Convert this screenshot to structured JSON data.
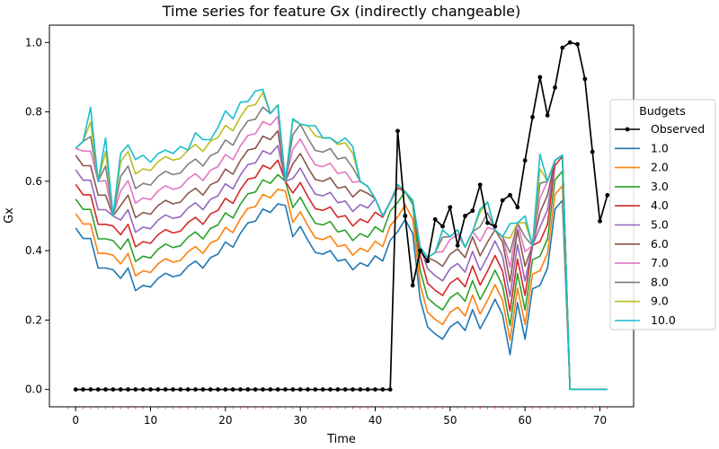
{
  "chart_data": {
    "type": "line",
    "title": "Time series for feature Gx (indirectly changeable)",
    "xlabel": "Time",
    "ylabel": "Gx",
    "xlim": [
      -3.5,
      74.5
    ],
    "ylim": [
      -0.05,
      1.05
    ],
    "xticks": [
      0,
      10,
      20,
      30,
      40,
      50,
      60,
      70
    ],
    "xtick_labels": [
      "0",
      "10",
      "20",
      "30",
      "40",
      "50",
      "60",
      "70"
    ],
    "yticks": [
      0.0,
      0.2,
      0.4,
      0.6,
      0.8,
      1.0
    ],
    "ytick_labels": [
      "0.0",
      "0.2",
      "0.4",
      "0.6",
      "0.8",
      "1.0"
    ],
    "legend": {
      "title": "Budgets",
      "placement": "center-right (outside plot)"
    },
    "grid": false,
    "observed": {
      "name": "Observed",
      "color": "#000000",
      "x": [
        0,
        1,
        2,
        3,
        4,
        5,
        6,
        7,
        8,
        9,
        10,
        11,
        12,
        13,
        14,
        15,
        16,
        17,
        18,
        19,
        20,
        21,
        22,
        23,
        24,
        25,
        26,
        27,
        28,
        29,
        30,
        31,
        32,
        33,
        34,
        35,
        36,
        37,
        38,
        39,
        40,
        41,
        42,
        43,
        44,
        45,
        46,
        47,
        48,
        49,
        50,
        51,
        52,
        53,
        54,
        55,
        56,
        57,
        58,
        59,
        60,
        61,
        62,
        63,
        64,
        65,
        66,
        67,
        68,
        69,
        70,
        71
      ],
      "values": [
        0,
        0,
        0,
        0,
        0,
        0,
        0,
        0,
        0,
        0,
        0,
        0,
        0,
        0,
        0,
        0,
        0,
        0,
        0,
        0,
        0,
        0,
        0,
        0,
        0,
        0,
        0,
        0,
        0,
        0,
        0,
        0,
        0,
        0,
        0,
        0,
        0,
        0,
        0,
        0,
        0,
        0,
        0,
        0.745,
        0.5,
        0.3,
        0.4,
        0.37,
        0.49,
        0.47,
        0.525,
        0.415,
        0.5,
        0.515,
        0.59,
        0.48,
        0.47,
        0.545,
        0.56,
        0.525,
        0.66,
        0.785,
        0.9,
        0.79,
        0.87,
        0.985,
        1.0,
        0.995,
        0.895,
        0.685,
        0.485,
        0.56
      ]
    },
    "budget_series": [
      {
        "name": "1.0",
        "color": "#1f77b4",
        "offset": 0.0
      },
      {
        "name": "2.0",
        "color": "#ff7f0e",
        "offset": 0.042
      },
      {
        "name": "3.0",
        "color": "#2ca02c",
        "offset": 0.084
      },
      {
        "name": "4.0",
        "color": "#d62728",
        "offset": 0.126
      },
      {
        "name": "5.0",
        "color": "#9467bd",
        "offset": 0.168
      },
      {
        "name": "6.0",
        "color": "#8c564b",
        "offset": 0.21
      },
      {
        "name": "7.0",
        "color": "#e377c2",
        "offset": 0.252
      },
      {
        "name": "8.0",
        "color": "#7f7f7f",
        "offset": 0.294
      },
      {
        "name": "9.0",
        "color": "#bcbd22",
        "offset": 0.336
      },
      {
        "name": "10.0",
        "color": "#17becf",
        "offset": 0.378
      }
    ],
    "budget_base_values": [
      0.465,
      0.435,
      0.435,
      0.35,
      0.35,
      0.345,
      0.32,
      0.35,
      0.285,
      0.3,
      0.295,
      0.32,
      0.335,
      0.325,
      0.33,
      0.355,
      0.37,
      0.35,
      0.38,
      0.39,
      0.425,
      0.41,
      0.45,
      0.48,
      0.485,
      0.52,
      0.51,
      0.535,
      0.53,
      0.44,
      0.47,
      0.43,
      0.395,
      0.39,
      0.4,
      0.37,
      0.375,
      0.345,
      0.365,
      0.355,
      0.385,
      0.37,
      0.43,
      0.455,
      0.49,
      0.45,
      0.26,
      0.18,
      0.16,
      0.145,
      0.18,
      0.195,
      0.17,
      0.23,
      0.175,
      0.215,
      0.26,
      0.215,
      0.1,
      0.25,
      0.145,
      0.29,
      0.3,
      0.35,
      0.52,
      0.545,
      0.62,
      0.0,
      0.0,
      0.0,
      0.0,
      0.0
    ],
    "budget_plateau_values": [
      0.695,
      0.715,
      0.845,
      0.6,
      0.725,
      0.5,
      0.68,
      0.705,
      0.665,
      0.675,
      0.655,
      0.68,
      0.69,
      0.68,
      0.7,
      0.69,
      0.74,
      0.72,
      0.72,
      0.755,
      0.805,
      0.78,
      0.845,
      0.83,
      0.86,
      0.865,
      0.795,
      0.82,
      0.6,
      0.78,
      0.765,
      0.76,
      0.76,
      0.725,
      0.725,
      0.71,
      0.725,
      0.7,
      0.6,
      0.585,
      0.55,
      0.5,
      0.54,
      0.59,
      0.57,
      0.545,
      0.41,
      0.38,
      0.395,
      0.46,
      0.44,
      0.46,
      0.41,
      0.455,
      0.52,
      0.54,
      0.46,
      0.44,
      0.575,
      0.48,
      0.5,
      0.415,
      0.72,
      0.6,
      0.66,
      0.675,
      0.0,
      0.0,
      0.0,
      0.0,
      0.0,
      0.0
    ]
  }
}
